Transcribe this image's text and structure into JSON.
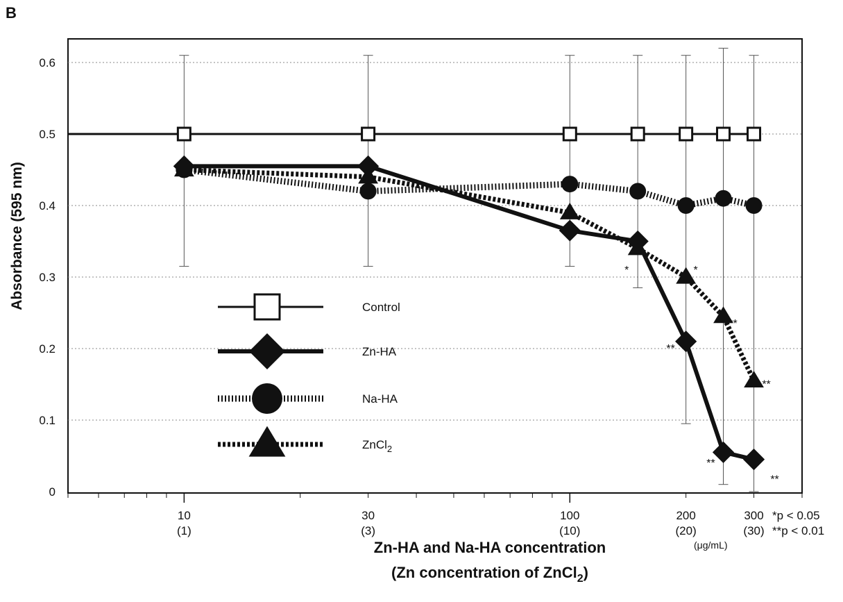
{
  "panel_label": "B",
  "ylabel": "Absorbance (595 nm)",
  "xlabel_line1": "Zn-HA and Na-HA concentration",
  "xlabel_line2_prefix": "(Zn concentration of ZnCl",
  "xlabel_line2_sub": "2",
  "xlabel_line2_suffix": ")",
  "x_unit": "(μg/mL)",
  "significance_1": "*p < 0.05",
  "significance_2": "**p < 0.01",
  "colors": {
    "ink": "#111111",
    "grid": "#888888",
    "errorbar": "#555555"
  },
  "chart_data": {
    "type": "line",
    "x_scale": "log",
    "xlim": [
      5,
      400
    ],
    "ylim": [
      0,
      0.65
    ],
    "grid": true,
    "legend_position": "center-left",
    "yticks": [
      0,
      0.1,
      0.2,
      0.3,
      0.4,
      0.5,
      0.6
    ],
    "ytick_labels": [
      "0",
      "0.1",
      "0.2",
      "0.3",
      "0.4",
      "0.5",
      "0.6"
    ],
    "xticks": [
      {
        "value": 10,
        "label": "10",
        "sublabel": "(1)"
      },
      {
        "value": 30,
        "label": "30",
        "sublabel": "(3)"
      },
      {
        "value": 100,
        "label": "100",
        "sublabel": "(10)"
      },
      {
        "value": 200,
        "label": "200",
        "sublabel": "(20)"
      },
      {
        "value": 300,
        "label": "300",
        "sublabel": "(30)"
      }
    ],
    "series": [
      {
        "name": "Control",
        "name_sub": "",
        "marker": "square",
        "line": "solid-thin",
        "x": [
          10,
          30,
          100,
          150,
          200,
          250,
          300
        ],
        "y": [
          0.5,
          0.5,
          0.5,
          0.5,
          0.5,
          0.5,
          0.5
        ]
      },
      {
        "name": "Zn-HA",
        "name_sub": "",
        "marker": "diamond",
        "line": "solid-thick",
        "x": [
          10,
          30,
          100,
          150,
          200,
          250,
          300
        ],
        "y": [
          0.455,
          0.455,
          0.365,
          0.35,
          0.21,
          0.055,
          0.045
        ]
      },
      {
        "name": "Na-HA",
        "name_sub": "",
        "marker": "circle",
        "line": "hatched",
        "x": [
          10,
          30,
          100,
          150,
          200,
          250,
          300
        ],
        "y": [
          0.45,
          0.42,
          0.43,
          0.42,
          0.4,
          0.41,
          0.4
        ]
      },
      {
        "name": "ZnCl",
        "name_sub": "2",
        "marker": "triangle",
        "line": "dotted-thick",
        "x": [
          10,
          30,
          100,
          150,
          200,
          250,
          300
        ],
        "y": [
          0.45,
          0.44,
          0.39,
          0.34,
          0.3,
          0.245,
          0.155
        ]
      }
    ],
    "error_bars": [
      {
        "x": 10,
        "low": 0.315,
        "high": 0.61
      },
      {
        "x": 30,
        "low": 0.315,
        "high": 0.61
      },
      {
        "x": 100,
        "low": 0.315,
        "high": 0.61
      },
      {
        "x": 150,
        "low": 0.285,
        "high": 0.61
      },
      {
        "x": 200,
        "low": 0.095,
        "high": 0.61
      },
      {
        "x": 250,
        "low": 0.01,
        "high": 0.62
      },
      {
        "x": 300,
        "low": 0.0,
        "high": 0.61
      }
    ],
    "annotations": [
      {
        "text": "*",
        "x": 150,
        "y": 0.305,
        "dx": -16
      },
      {
        "text": "*",
        "x": 200,
        "y": 0.305,
        "dx": 14
      },
      {
        "text": "**",
        "x": 200,
        "y": 0.195,
        "dx": -22
      },
      {
        "text": "**",
        "x": 250,
        "y": 0.23,
        "dx": 14
      },
      {
        "text": "**",
        "x": 300,
        "y": 0.145,
        "dx": 18
      },
      {
        "text": "**",
        "x": 250,
        "y": 0.035,
        "dx": -18
      },
      {
        "text": "**",
        "x": 300,
        "y": 0.012,
        "dx": 30
      }
    ]
  }
}
